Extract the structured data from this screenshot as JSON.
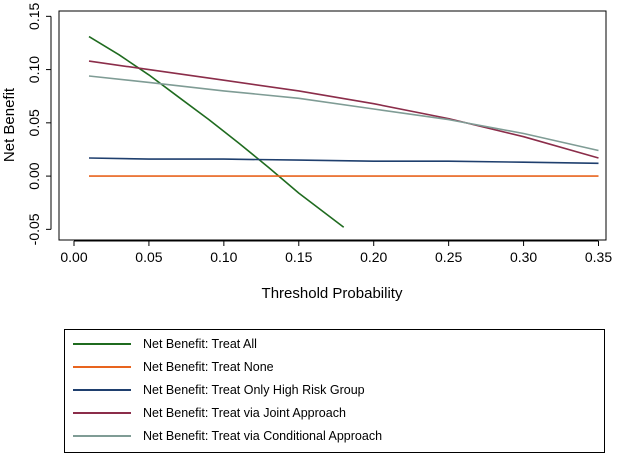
{
  "chart_data": {
    "type": "line",
    "title": "",
    "xlabel": "Threshold Probability",
    "ylabel": "Net Benefit",
    "xlim": [
      -0.01,
      0.355
    ],
    "ylim": [
      -0.06,
      0.155
    ],
    "x_ticks": [
      0.0,
      0.05,
      0.1,
      0.15,
      0.2,
      0.25,
      0.3,
      0.35
    ],
    "x_tick_labels": [
      "0.00",
      "0.05",
      "0.10",
      "0.15",
      "0.20",
      "0.25",
      "0.30",
      "0.35"
    ],
    "y_ticks": [
      -0.05,
      0.0,
      0.05,
      0.1,
      0.15
    ],
    "y_tick_labels": [
      "-0.05",
      "0.00",
      "0.05",
      "0.10",
      "0.15"
    ],
    "grid": false,
    "legend_position": "bottom",
    "series": [
      {
        "name": "Net Benefit: Treat All",
        "color": "#1f6b1f",
        "x": [
          0.01,
          0.03,
          0.05,
          0.07,
          0.09,
          0.11,
          0.13,
          0.15,
          0.18
        ],
        "y": [
          0.131,
          0.114,
          0.095,
          0.074,
          0.053,
          0.031,
          0.008,
          -0.016,
          -0.048
        ]
      },
      {
        "name": "Net Benefit: Treat None",
        "color": "#e8641e",
        "x": [
          0.01,
          0.35
        ],
        "y": [
          0.0,
          0.0
        ]
      },
      {
        "name": "Net Benefit: Treat Only High Risk Group",
        "color": "#1f3f6e",
        "x": [
          0.01,
          0.05,
          0.1,
          0.15,
          0.2,
          0.25,
          0.3,
          0.35
        ],
        "y": [
          0.017,
          0.016,
          0.016,
          0.015,
          0.014,
          0.014,
          0.013,
          0.012
        ]
      },
      {
        "name": "Net Benefit: Treat via Joint Approach",
        "color": "#8b2d4a",
        "x": [
          0.01,
          0.05,
          0.1,
          0.15,
          0.2,
          0.25,
          0.3,
          0.35
        ],
        "y": [
          0.108,
          0.1,
          0.09,
          0.08,
          0.068,
          0.054,
          0.037,
          0.017
        ]
      },
      {
        "name": "Net Benefit: Treat via Conditional Approach",
        "color": "#7f9c95",
        "x": [
          0.01,
          0.05,
          0.1,
          0.15,
          0.2,
          0.25,
          0.3,
          0.35
        ],
        "y": [
          0.094,
          0.088,
          0.08,
          0.073,
          0.063,
          0.053,
          0.04,
          0.024
        ]
      }
    ]
  }
}
